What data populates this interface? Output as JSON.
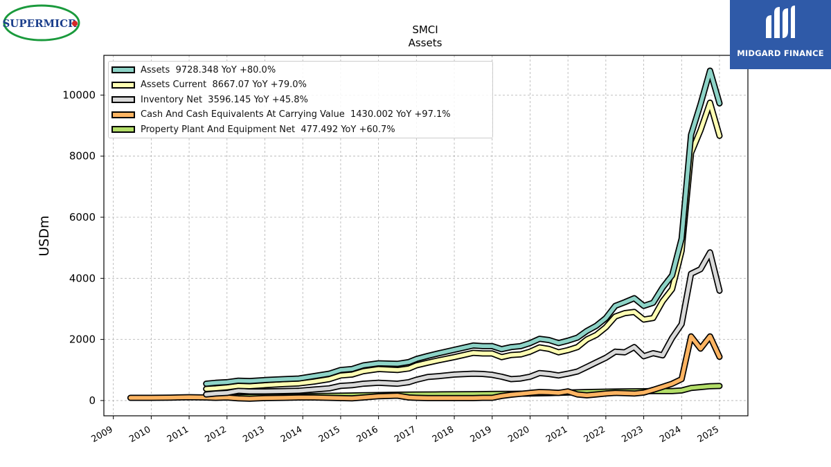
{
  "header": {
    "left_logo_text": "SUPERMICR",
    "right_logo_text": "MIDGARD FINANCE"
  },
  "chart_data": {
    "type": "line",
    "title": "SMCI",
    "subtitle": "Assets",
    "ylabel": "USDm",
    "xlabel": "",
    "xlim": [
      2008.75,
      2025.75
    ],
    "ylim": [
      -500,
      11300
    ],
    "x_ticks": [
      "2009",
      "2010",
      "2011",
      "2012",
      "2013",
      "2014",
      "2015",
      "2016",
      "2017",
      "2018",
      "2019",
      "2020",
      "2021",
      "2022",
      "2023",
      "2024",
      "2025"
    ],
    "y_ticks": [
      0,
      2000,
      4000,
      6000,
      8000,
      10000
    ],
    "grid": true,
    "legend_position": "top-left",
    "series": [
      {
        "name": "Assets  9728.348 YoY +80.0%",
        "color": "#8dd3c7",
        "x": [
          2011.45,
          2011.7,
          2012.0,
          2012.3,
          2012.6,
          2013.0,
          2013.5,
          2013.9,
          2014.3,
          2014.7,
          2015.0,
          2015.3,
          2015.6,
          2016.0,
          2016.5,
          2016.8,
          2017.0,
          2017.3,
          2017.6,
          2018.0,
          2018.5,
          2018.75,
          2019.0,
          2019.25,
          2019.5,
          2019.75,
          2020.0,
          2020.25,
          2020.5,
          2020.75,
          2021.0,
          2021.25,
          2021.5,
          2021.75,
          2022.0,
          2022.25,
          2022.5,
          2022.75,
          2023.0,
          2023.25,
          2023.5,
          2023.75,
          2024.0,
          2024.25,
          2024.5,
          2024.75,
          2025.0
        ],
        "y": [
          550,
          580,
          600,
          650,
          640,
          670,
          700,
          720,
          800,
          880,
          1000,
          1030,
          1150,
          1220,
          1200,
          1260,
          1360,
          1460,
          1550,
          1660,
          1800,
          1780,
          1780,
          1680,
          1750,
          1780,
          1880,
          2020,
          1980,
          1880,
          1960,
          2060,
          2280,
          2450,
          2700,
          3100,
          3220,
          3350,
          3100,
          3200,
          3700,
          4100,
          5300,
          8700,
          9700,
          10800,
          9728
        ]
      },
      {
        "name": "Assets Current  8667.07 YoY +79.0%",
        "color": "#ffffb3",
        "x": [
          2011.45,
          2011.7,
          2012.0,
          2012.3,
          2012.6,
          2013.0,
          2013.5,
          2013.9,
          2014.3,
          2014.7,
          2015.0,
          2015.3,
          2015.6,
          2016.0,
          2016.5,
          2016.8,
          2017.0,
          2017.3,
          2017.6,
          2018.0,
          2018.5,
          2018.75,
          2019.0,
          2019.25,
          2019.5,
          2019.75,
          2020.0,
          2020.25,
          2020.5,
          2020.75,
          2021.0,
          2021.25,
          2021.5,
          2021.75,
          2022.0,
          2022.25,
          2022.5,
          2022.75,
          2023.0,
          2023.25,
          2023.5,
          2023.75,
          2024.0,
          2024.25,
          2024.5,
          2024.75,
          2025.0
        ],
        "y": [
          380,
          400,
          430,
          480,
          470,
          500,
          540,
          560,
          620,
          700,
          820,
          850,
          960,
          1030,
          1000,
          1050,
          1150,
          1240,
          1320,
          1420,
          1560,
          1540,
          1540,
          1420,
          1490,
          1510,
          1600,
          1740,
          1690,
          1580,
          1650,
          1750,
          2000,
          2150,
          2400,
          2750,
          2860,
          2900,
          2650,
          2700,
          3250,
          3650,
          4900,
          8100,
          8850,
          9750,
          8667
        ]
      },
      {
        "name": "Inventory Net  3596.145 YoY +45.8%",
        "color": "#d9d9d9",
        "x": [
          2011.45,
          2011.7,
          2012.0,
          2012.3,
          2012.6,
          2013.0,
          2013.5,
          2013.9,
          2014.3,
          2014.7,
          2015.0,
          2015.3,
          2015.6,
          2016.0,
          2016.5,
          2016.8,
          2017.0,
          2017.3,
          2017.6,
          2018.0,
          2018.5,
          2018.75,
          2019.0,
          2019.25,
          2019.5,
          2019.75,
          2020.0,
          2020.25,
          2020.5,
          2020.75,
          2021.0,
          2021.25,
          2021.5,
          2021.75,
          2022.0,
          2022.25,
          2022.5,
          2022.75,
          2023.0,
          2023.25,
          2023.5,
          2023.75,
          2024.0,
          2024.25,
          2024.5,
          2024.75,
          2025.0
        ],
        "y": [
          200,
          230,
          250,
          320,
          300,
          300,
          310,
          320,
          360,
          400,
          480,
          500,
          550,
          580,
          550,
          600,
          680,
          770,
          800,
          850,
          880,
          870,
          840,
          780,
          700,
          720,
          780,
          900,
          870,
          820,
          880,
          950,
          1100,
          1250,
          1400,
          1600,
          1580,
          1750,
          1450,
          1550,
          1480,
          2050,
          2500,
          4150,
          4300,
          4850,
          3596
        ]
      },
      {
        "name": "Cash And Cash Equivalents At Carrying Value  1430.002 YoY +97.1%",
        "color": "#fdb462",
        "x": [
          2009.45,
          2009.75,
          2010.0,
          2010.5,
          2011.0,
          2011.45,
          2011.7,
          2012.0,
          2012.3,
          2012.6,
          2013.0,
          2013.5,
          2013.9,
          2014.3,
          2014.7,
          2015.0,
          2015.3,
          2015.6,
          2016.0,
          2016.5,
          2016.8,
          2017.0,
          2017.3,
          2017.6,
          2018.0,
          2018.5,
          2018.75,
          2019.0,
          2019.25,
          2019.5,
          2019.75,
          2020.0,
          2020.25,
          2020.5,
          2020.75,
          2021.0,
          2021.25,
          2021.5,
          2021.75,
          2022.0,
          2022.25,
          2022.5,
          2022.75,
          2023.0,
          2023.25,
          2023.5,
          2023.75,
          2024.0,
          2024.25,
          2024.5,
          2024.75,
          2025.0
        ],
        "y": [
          90,
          90,
          90,
          95,
          110,
          100,
          90,
          100,
          70,
          60,
          80,
          90,
          100,
          100,
          90,
          80,
          70,
          100,
          140,
          160,
          100,
          90,
          80,
          80,
          80,
          80,
          90,
          90,
          150,
          190,
          220,
          250,
          280,
          270,
          250,
          300,
          200,
          170,
          200,
          230,
          250,
          240,
          230,
          260,
          350,
          450,
          550,
          700,
          2100,
          1700,
          2100,
          1430
        ]
      },
      {
        "name": "Property Plant And Equipment Net  477.492 YoY +60.7%",
        "color": "#b3de69",
        "x": [
          2011.45,
          2012.0,
          2012.5,
          2013.0,
          2013.5,
          2014.0,
          2014.5,
          2015.0,
          2015.5,
          2016.0,
          2016.5,
          2017.0,
          2017.5,
          2018.0,
          2018.5,
          2019.0,
          2019.5,
          2020.0,
          2020.5,
          2021.0,
          2021.5,
          2022.0,
          2022.5,
          2023.0,
          2023.25,
          2023.5,
          2023.75,
          2024.0,
          2024.25,
          2024.5,
          2024.75,
          2025.0
        ],
        "y": [
          100,
          110,
          115,
          120,
          130,
          140,
          150,
          160,
          170,
          180,
          190,
          195,
          200,
          205,
          210,
          215,
          220,
          230,
          240,
          260,
          280,
          290,
          300,
          305,
          310,
          310,
          310,
          330,
          410,
          440,
          470,
          477
        ]
      }
    ]
  }
}
